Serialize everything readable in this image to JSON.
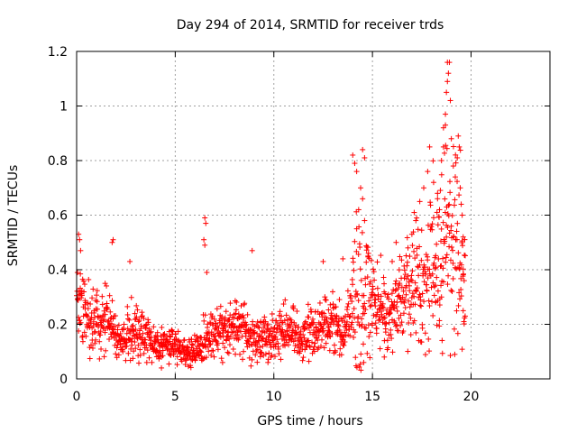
{
  "chart_data": {
    "type": "scatter",
    "title": "Day 294 of 2014, SRMTID for receiver trds",
    "xlabel": "GPS time / hours",
    "ylabel": "SRMTID / TECUs",
    "xlim": [
      0,
      24
    ],
    "ylim": [
      0,
      1.2
    ],
    "xticks": [
      0,
      5,
      10,
      15,
      20
    ],
    "xtick_labels": [
      "0",
      "5",
      "10",
      "15",
      "20"
    ],
    "yticks": [
      0,
      0.2,
      0.4,
      0.6,
      0.8,
      1.0,
      1.2
    ],
    "ytick_labels": [
      "0",
      "0.2",
      "0.4",
      "0.6",
      "0.8",
      "1",
      "1.2"
    ],
    "grid": true,
    "marker": "+",
    "color": "#ff0000",
    "x_span": [
      0,
      19.7
    ],
    "trend": [
      [
        0.0,
        0.28
      ],
      [
        0.5,
        0.22
      ],
      [
        1.0,
        0.21
      ],
      [
        1.5,
        0.22
      ],
      [
        2.0,
        0.15
      ],
      [
        2.5,
        0.15
      ],
      [
        3.0,
        0.19
      ],
      [
        3.5,
        0.15
      ],
      [
        4.0,
        0.12
      ],
      [
        4.5,
        0.12
      ],
      [
        5.0,
        0.12
      ],
      [
        5.5,
        0.1
      ],
      [
        6.0,
        0.11
      ],
      [
        6.5,
        0.15
      ],
      [
        7.0,
        0.17
      ],
      [
        7.5,
        0.18
      ],
      [
        8.0,
        0.2
      ],
      [
        8.5,
        0.17
      ],
      [
        9.0,
        0.15
      ],
      [
        9.5,
        0.14
      ],
      [
        10.0,
        0.16
      ],
      [
        10.5,
        0.18
      ],
      [
        11.0,
        0.17
      ],
      [
        11.5,
        0.15
      ],
      [
        12.0,
        0.18
      ],
      [
        12.5,
        0.22
      ],
      [
        13.0,
        0.2
      ],
      [
        13.5,
        0.17
      ],
      [
        14.0,
        0.25
      ],
      [
        14.5,
        0.32
      ],
      [
        15.0,
        0.3
      ],
      [
        15.5,
        0.26
      ],
      [
        16.0,
        0.24
      ],
      [
        16.5,
        0.3
      ],
      [
        17.0,
        0.35
      ],
      [
        17.5,
        0.38
      ],
      [
        18.0,
        0.42
      ],
      [
        18.5,
        0.45
      ],
      [
        19.0,
        0.48
      ],
      [
        19.5,
        0.45
      ],
      [
        19.7,
        0.3
      ]
    ],
    "highlights": [
      {
        "x": 0.1,
        "y": 0.53
      },
      {
        "x": 0.15,
        "y": 0.51
      },
      {
        "x": 0.2,
        "y": 0.47
      },
      {
        "x": 1.8,
        "y": 0.5
      },
      {
        "x": 1.85,
        "y": 0.51
      },
      {
        "x": 2.7,
        "y": 0.43
      },
      {
        "x": 6.5,
        "y": 0.59
      },
      {
        "x": 6.55,
        "y": 0.57
      },
      {
        "x": 6.45,
        "y": 0.51
      },
      {
        "x": 6.5,
        "y": 0.49
      },
      {
        "x": 6.6,
        "y": 0.39
      },
      {
        "x": 8.9,
        "y": 0.47
      },
      {
        "x": 7.4,
        "y": 0.06
      },
      {
        "x": 9.7,
        "y": 0.06
      },
      {
        "x": 4.3,
        "y": 0.04
      },
      {
        "x": 13.5,
        "y": 0.44
      },
      {
        "x": 12.5,
        "y": 0.43
      },
      {
        "x": 14.0,
        "y": 0.82
      },
      {
        "x": 14.1,
        "y": 0.79
      },
      {
        "x": 14.2,
        "y": 0.76
      },
      {
        "x": 14.5,
        "y": 0.84
      },
      {
        "x": 14.6,
        "y": 0.81
      },
      {
        "x": 14.4,
        "y": 0.7
      },
      {
        "x": 14.3,
        "y": 0.62
      },
      {
        "x": 14.5,
        "y": 0.66
      },
      {
        "x": 14.2,
        "y": 0.55
      },
      {
        "x": 14.6,
        "y": 0.58
      },
      {
        "x": 14.8,
        "y": 0.46
      },
      {
        "x": 16.0,
        "y": 0.43
      },
      {
        "x": 16.2,
        "y": 0.5
      },
      {
        "x": 15.6,
        "y": 0.08
      },
      {
        "x": 16.8,
        "y": 0.48
      },
      {
        "x": 17.0,
        "y": 0.53
      },
      {
        "x": 17.2,
        "y": 0.58
      },
      {
        "x": 17.4,
        "y": 0.65
      },
      {
        "x": 17.6,
        "y": 0.7
      },
      {
        "x": 17.8,
        "y": 0.76
      },
      {
        "x": 17.9,
        "y": 0.85
      },
      {
        "x": 18.1,
        "y": 0.72
      },
      {
        "x": 18.3,
        "y": 0.68
      },
      {
        "x": 18.4,
        "y": 0.62
      },
      {
        "x": 18.5,
        "y": 0.8
      },
      {
        "x": 18.6,
        "y": 0.85
      },
      {
        "x": 18.6,
        "y": 0.92
      },
      {
        "x": 18.7,
        "y": 0.97
      },
      {
        "x": 18.75,
        "y": 1.05
      },
      {
        "x": 18.8,
        "y": 1.09
      },
      {
        "x": 18.85,
        "y": 1.12
      },
      {
        "x": 18.9,
        "y": 1.16
      },
      {
        "x": 18.8,
        "y": 1.16
      },
      {
        "x": 18.95,
        "y": 1.02
      },
      {
        "x": 18.7,
        "y": 0.93
      },
      {
        "x": 19.0,
        "y": 0.88
      },
      {
        "x": 19.1,
        "y": 0.78
      },
      {
        "x": 19.2,
        "y": 0.74
      },
      {
        "x": 19.3,
        "y": 0.81
      },
      {
        "x": 19.35,
        "y": 0.89
      },
      {
        "x": 19.4,
        "y": 0.85
      },
      {
        "x": 19.45,
        "y": 0.7
      },
      {
        "x": 19.5,
        "y": 0.64
      },
      {
        "x": 19.55,
        "y": 0.6
      },
      {
        "x": 19.6,
        "y": 0.52
      },
      {
        "x": 19.65,
        "y": 0.36
      },
      {
        "x": 19.7,
        "y": 0.23
      },
      {
        "x": 19.6,
        "y": 0.25
      },
      {
        "x": 18.5,
        "y": 0.3
      },
      {
        "x": 18.2,
        "y": 0.28
      }
    ]
  }
}
